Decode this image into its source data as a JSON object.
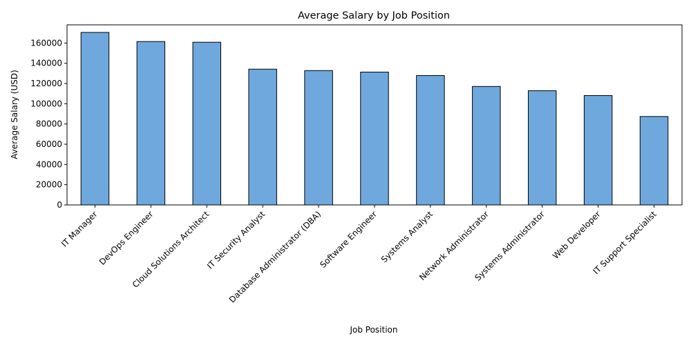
{
  "chart_data": {
    "type": "bar",
    "title": "Average Salary by Job Position",
    "xlabel": "Job Position",
    "ylabel": "Average Salary (USD)",
    "categories": [
      "IT Manager",
      "DevOps Engineer",
      "Cloud Solutions Architect",
      "IT Security Analyst",
      "Database Administrator (DBA)",
      "Software Engineer",
      "Systems Analyst",
      "Network Administrator",
      "Systems Administrator",
      "Web Developer",
      "IT Support Specialist"
    ],
    "values": [
      170500,
      161500,
      160800,
      134200,
      132800,
      131300,
      127900,
      117100,
      112900,
      108100,
      87400
    ],
    "ylim": [
      0,
      178000
    ],
    "yticks": [
      0,
      20000,
      40000,
      60000,
      80000,
      100000,
      120000,
      140000,
      160000
    ],
    "bar_color": "#6fa8dc",
    "edge_color": "#000000",
    "grid": false,
    "legend": "none"
  }
}
